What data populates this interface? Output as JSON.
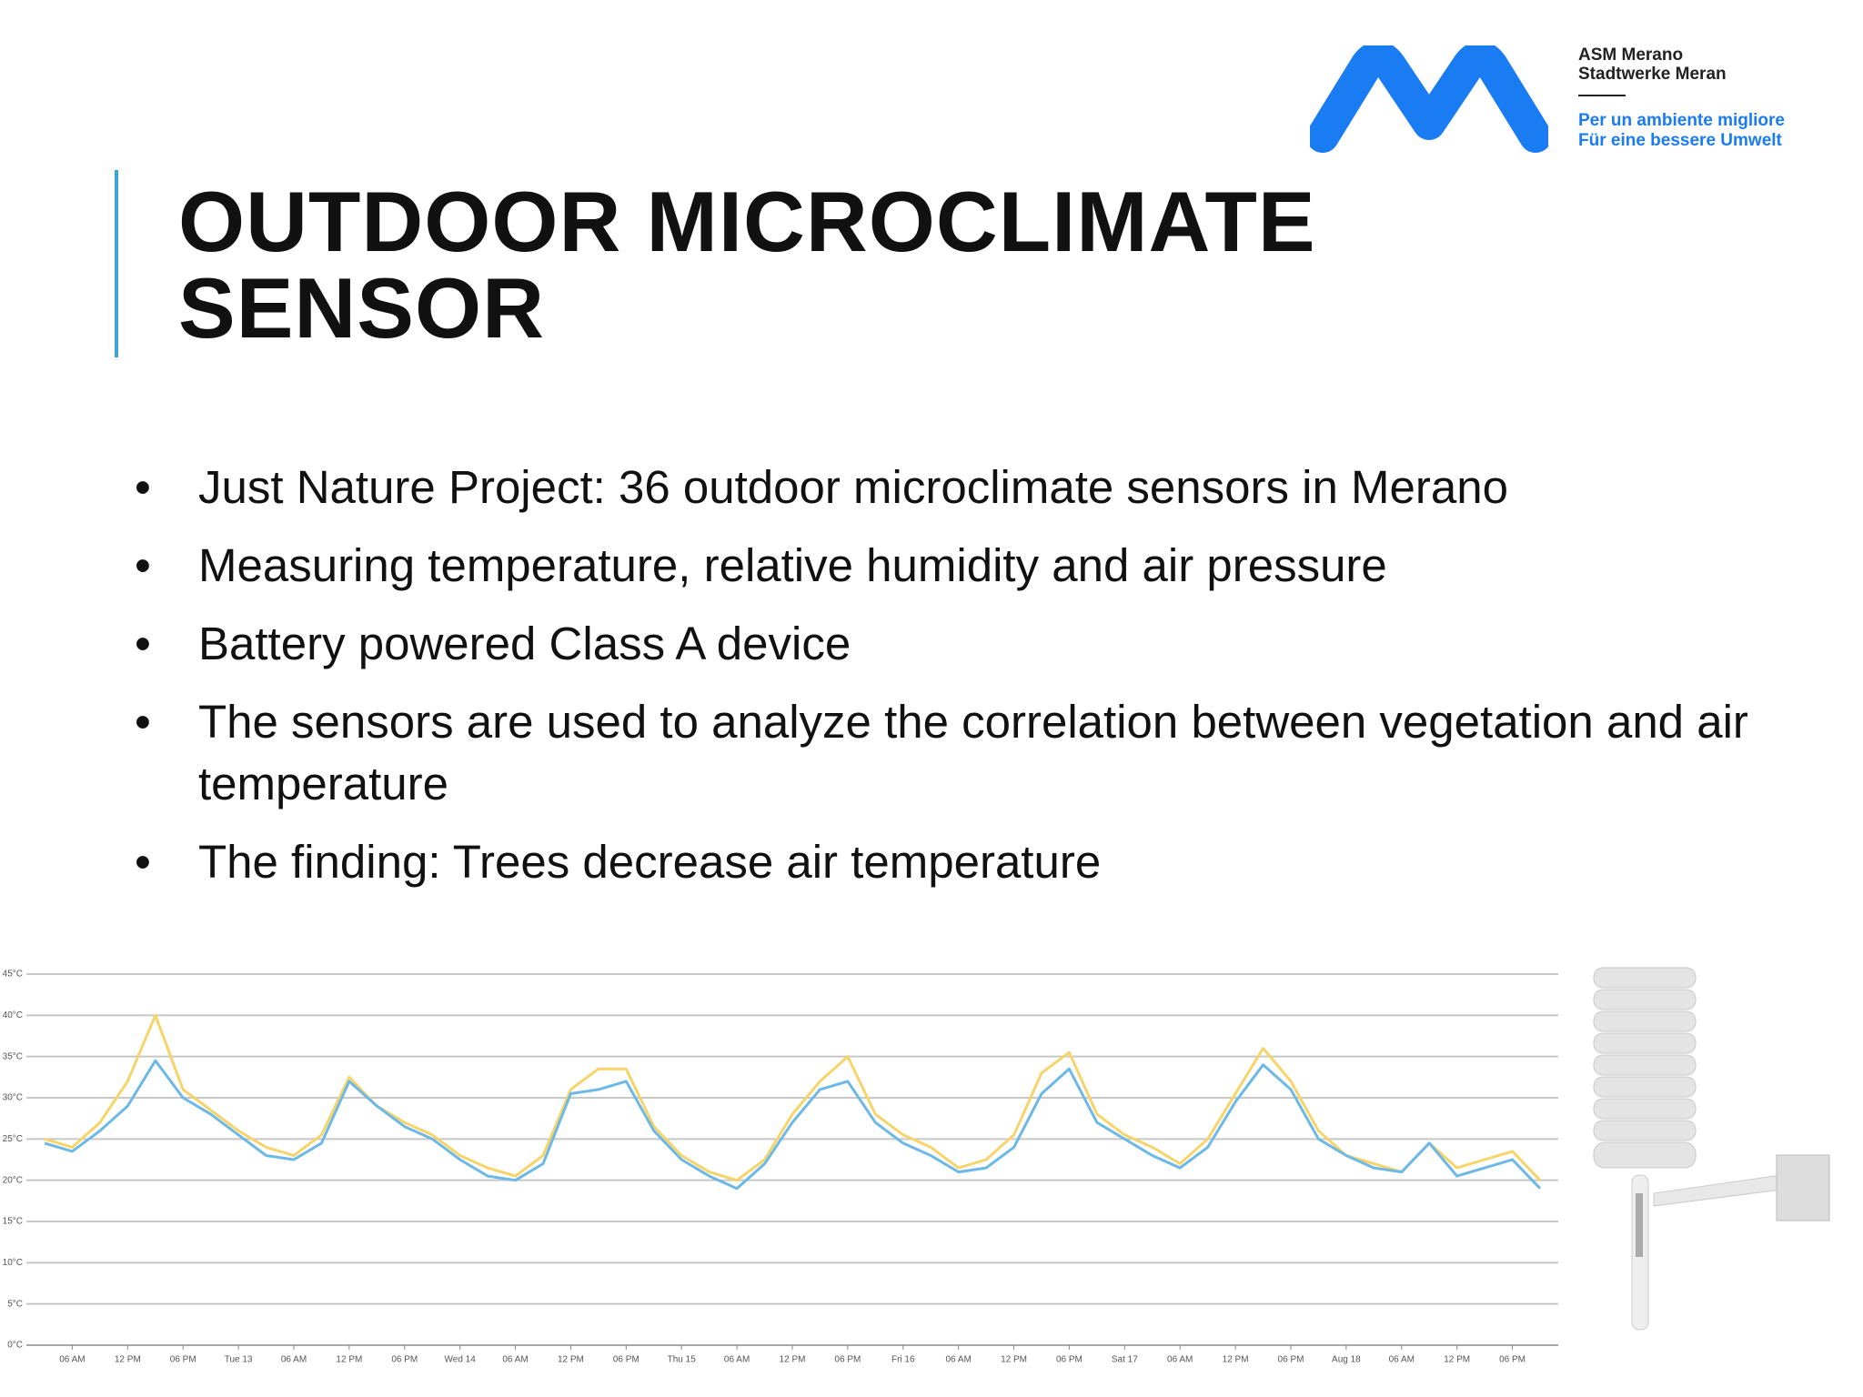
{
  "header": {
    "title": "OUTDOOR MICROCLIMATE SENSOR"
  },
  "logo": {
    "company": "ASM Merano",
    "company_de": "Stadtwerke Meran",
    "slogan": "Per un ambiente migliore",
    "slogan_de": "Für eine bessere Umwelt"
  },
  "bullets": [
    "Just Nature Project:  36 outdoor microclimate sensors in Merano",
    "Measuring temperature, relative humidity and air pressure",
    "Battery powered Class A device",
    "The sensors are used to analyze the correlation between vegetation and air temperature",
    "The finding: Trees decrease air temperature"
  ],
  "chart_data": {
    "type": "line",
    "categories": [
      null,
      "06 AM",
      null,
      "12 PM",
      null,
      "06 PM",
      null,
      "Tue 13",
      null,
      "06 AM",
      null,
      "12 PM",
      null,
      "06 PM",
      null,
      "Wed 14",
      null,
      "06 AM",
      null,
      "12 PM",
      null,
      "06 PM",
      null,
      "Thu 15",
      null,
      "06 AM",
      null,
      "12 PM",
      null,
      "06 PM",
      null,
      "Fri 16",
      null,
      "06 AM",
      null,
      "12 PM",
      null,
      "06 PM",
      null,
      "Sat 17",
      null,
      "06 AM",
      null,
      "12 PM",
      null,
      "06 PM",
      null,
      "Aug 18",
      null,
      "06 AM",
      null,
      "12 PM",
      null,
      "06 PM",
      null
    ],
    "series": [
      {
        "color": "#f7d46a",
        "values": [
          25,
          24,
          27,
          32,
          40,
          31,
          28.5,
          26,
          24,
          23,
          25.5,
          32.5,
          29,
          27,
          25.5,
          23,
          21.5,
          20.5,
          23,
          31,
          33.5,
          33.5,
          26.5,
          23,
          21,
          20,
          22.5,
          28,
          32,
          35,
          28,
          25.5,
          24,
          21.5,
          22.5,
          25.5,
          33,
          35.5,
          28,
          25.5,
          24,
          22,
          25,
          30.5,
          36,
          32,
          26,
          23,
          22,
          21,
          24.5,
          21.5,
          22.5,
          23.5,
          20
        ]
      },
      {
        "color": "#6cb8e6",
        "values": [
          24.5,
          23.5,
          26,
          29,
          34.5,
          30,
          28,
          25.5,
          23,
          22.5,
          24.5,
          32,
          29,
          26.5,
          25,
          22.5,
          20.5,
          20,
          22,
          30.5,
          31,
          32,
          26,
          22.5,
          20.5,
          19,
          22,
          27,
          31,
          32,
          27,
          24.5,
          23,
          21,
          21.5,
          24,
          30.5,
          33.5,
          27,
          25,
          23,
          21.5,
          24,
          29.5,
          34,
          31,
          25,
          23,
          21.5,
          21,
          24.5,
          20.5,
          21.5,
          22.5,
          19
        ]
      }
    ],
    "ylim": [
      0,
      45
    ],
    "yticks": [
      {
        "value": 0,
        "label": "0°C"
      },
      {
        "value": 5,
        "label": "5°C"
      },
      {
        "value": 10,
        "label": "10°C"
      },
      {
        "value": 15,
        "label": "15°C"
      },
      {
        "value": 20,
        "label": "20°C"
      },
      {
        "value": 25,
        "label": "25°C"
      },
      {
        "value": 30,
        "label": "30°C"
      },
      {
        "value": 35,
        "label": "35°C"
      },
      {
        "value": 40,
        "label": "40°C"
      },
      {
        "value": 45,
        "label": "45°C"
      }
    ],
    "grid": true
  }
}
